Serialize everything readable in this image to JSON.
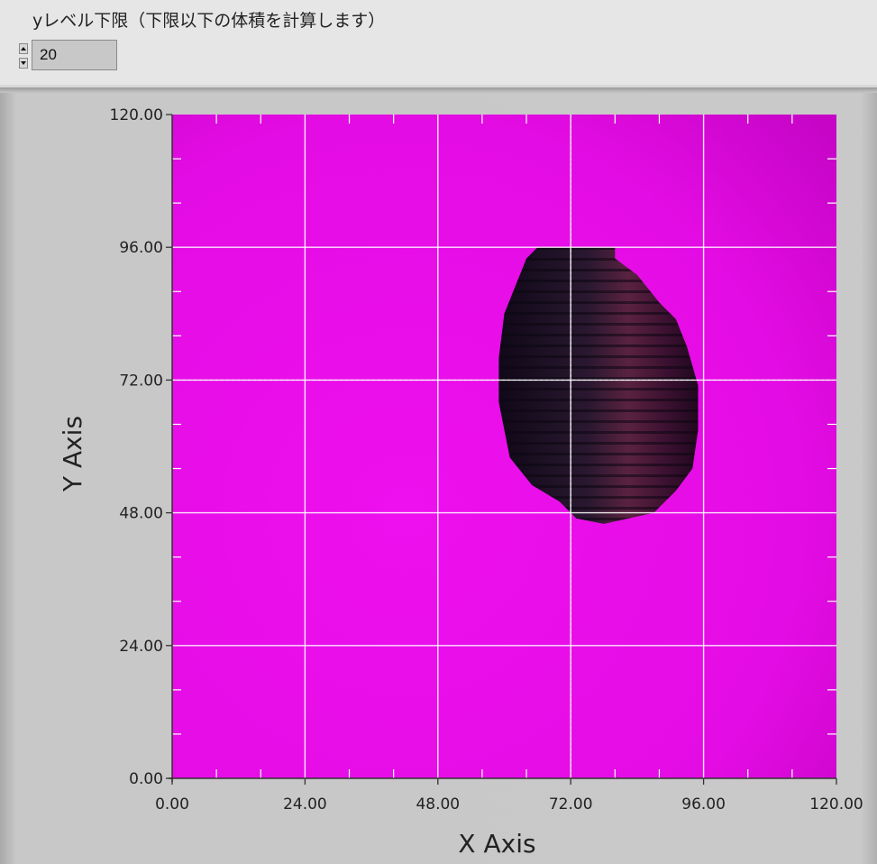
{
  "control": {
    "label": "yレベル下限（下限以下の体積を計算します）",
    "value": "20"
  },
  "colors": {
    "plot_background": "#e80ee8",
    "grid": "#ffffff",
    "blob_dark": "#140b1e"
  },
  "chart_data": {
    "type": "heatmap",
    "title": "",
    "xlabel": "X Axis",
    "ylabel": "Y Axis",
    "xlim": [
      0,
      120
    ],
    "ylim": [
      0,
      120
    ],
    "x_ticks": [
      "0.00",
      "24.00",
      "48.00",
      "72.00",
      "96.00",
      "120.00"
    ],
    "y_ticks": [
      "0.00",
      "24.00",
      "48.00",
      "72.00",
      "96.00",
      "120.00"
    ],
    "grid": true,
    "cursor": {
      "x": 72,
      "y": 72
    },
    "region_outline": [
      [
        66,
        96
      ],
      [
        80,
        96
      ],
      [
        80,
        94
      ],
      [
        84,
        91
      ],
      [
        88,
        86
      ],
      [
        91,
        83
      ],
      [
        93,
        78
      ],
      [
        95,
        71
      ],
      [
        95,
        63
      ],
      [
        94,
        56
      ],
      [
        91,
        52
      ],
      [
        87,
        48
      ],
      [
        78,
        46
      ],
      [
        73,
        47
      ],
      [
        70,
        50
      ],
      [
        65,
        53
      ],
      [
        61,
        58
      ],
      [
        60,
        63
      ],
      [
        59,
        68
      ],
      [
        59,
        76
      ],
      [
        60,
        84
      ],
      [
        62,
        89
      ],
      [
        64,
        94
      ]
    ]
  }
}
